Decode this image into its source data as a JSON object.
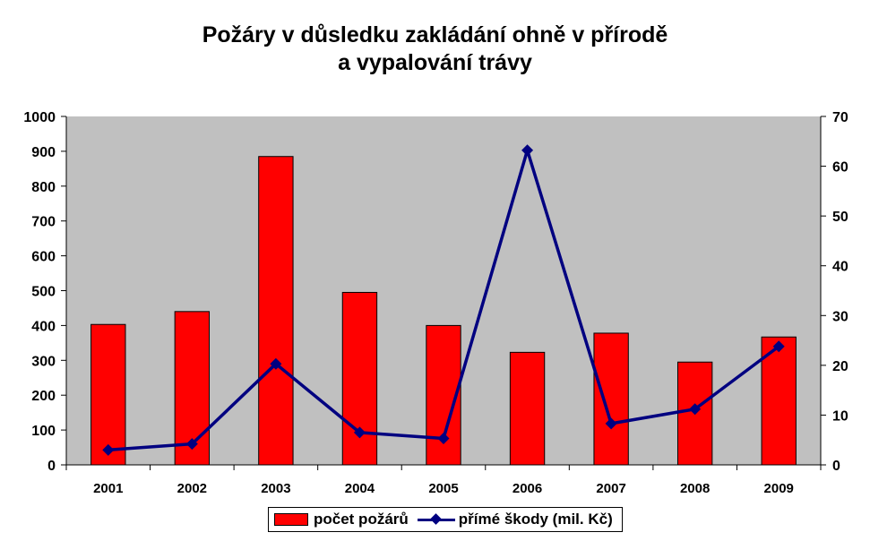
{
  "chart_data": {
    "type": "bar",
    "title_lines": [
      "Požáry v důsledku zakládání ohně v přírodě",
      "a vypalování trávy"
    ],
    "categories": [
      "2001",
      "2002",
      "2003",
      "2004",
      "2005",
      "2006",
      "2007",
      "2008",
      "2009"
    ],
    "series": [
      {
        "name": "počet požárů",
        "type": "bar",
        "axis": "left",
        "color": "#FF0000",
        "values": [
          403,
          440,
          885,
          495,
          400,
          323,
          378,
          295,
          367
        ]
      },
      {
        "name": "přímé škody (mil. Kč)",
        "type": "line",
        "axis": "right",
        "color": "#000080",
        "values": [
          3.0,
          4.2,
          20.3,
          6.5,
          5.3,
          63.2,
          8.3,
          11.2,
          23.8
        ]
      }
    ],
    "y_left": {
      "min": 0,
      "max": 1000,
      "ticks": [
        "0",
        "100",
        "200",
        "300",
        "400",
        "500",
        "600",
        "700",
        "800",
        "900",
        "1000"
      ]
    },
    "y_right": {
      "min": 0,
      "max": 70,
      "ticks": [
        "0",
        "10",
        "20",
        "30",
        "40",
        "50",
        "60",
        "70"
      ]
    },
    "plot_background": "#C0C0C0",
    "grid": false,
    "legend_position": "bottom"
  }
}
